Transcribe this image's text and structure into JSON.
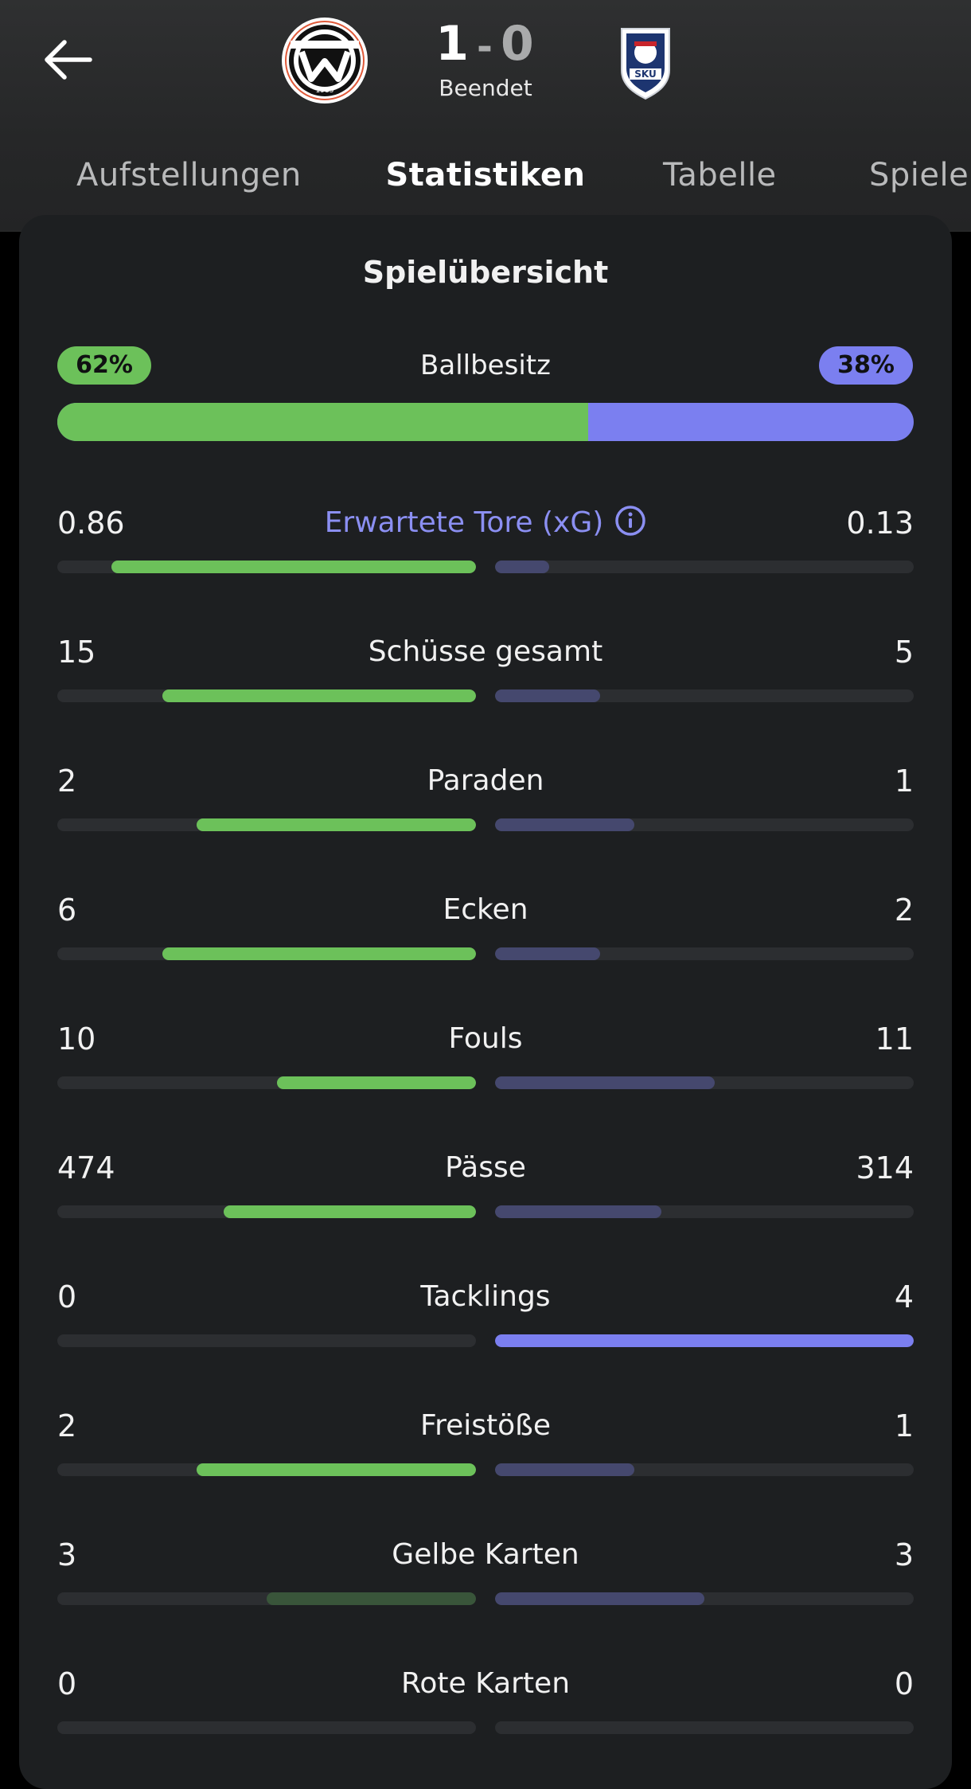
{
  "header": {
    "score_home": "1",
    "score_sep": "-",
    "score_away": "0",
    "status": "Beendet",
    "home_crest_year": "1985",
    "away_crest_text": "SKU"
  },
  "tabs": [
    {
      "label": "Aufstellungen"
    },
    {
      "label": "Statistiken",
      "active": true
    },
    {
      "label": "Tabelle"
    },
    {
      "label": "Spiele"
    }
  ],
  "card": {
    "title": "Spielübersicht",
    "possession": {
      "label": "Ballbesitz",
      "home": "62%",
      "away": "38%",
      "home_fraction": 0.62
    }
  },
  "stats": [
    {
      "label": "Erwartete Tore (xG)",
      "home": "0.86",
      "away": "0.13",
      "home_share": 0.87,
      "away_share": 0.13,
      "info": true
    },
    {
      "label": "Schüsse gesamt",
      "home": "15",
      "away": "5",
      "home_share": 0.75,
      "away_share": 0.25
    },
    {
      "label": "Paraden",
      "home": "2",
      "away": "1",
      "home_share": 0.667,
      "away_share": 0.333
    },
    {
      "label": "Ecken",
      "home": "6",
      "away": "2",
      "home_share": 0.75,
      "away_share": 0.25
    },
    {
      "label": "Fouls",
      "home": "10",
      "away": "11",
      "home_share": 0.476,
      "away_share": 0.524
    },
    {
      "label": "Pässe",
      "home": "474",
      "away": "314",
      "home_share": 0.602,
      "away_share": 0.398
    },
    {
      "label": "Tacklings",
      "home": "0",
      "away": "4",
      "home_share": 0,
      "away_share": 1
    },
    {
      "label": "Freistöße",
      "home": "2",
      "away": "1",
      "home_share": 0.667,
      "away_share": 0.333
    },
    {
      "label": "Gelbe Karten",
      "home": "3",
      "away": "3",
      "home_share": 0.5,
      "away_share": 0.5
    },
    {
      "label": "Rote Karten",
      "home": "0",
      "away": "0",
      "home_share": 0,
      "away_share": 0
    }
  ],
  "colors": {
    "home": "#6cc15a",
    "away": "#7b7ff0",
    "away_dim": "#45486e",
    "home_dim": "#39553a"
  }
}
